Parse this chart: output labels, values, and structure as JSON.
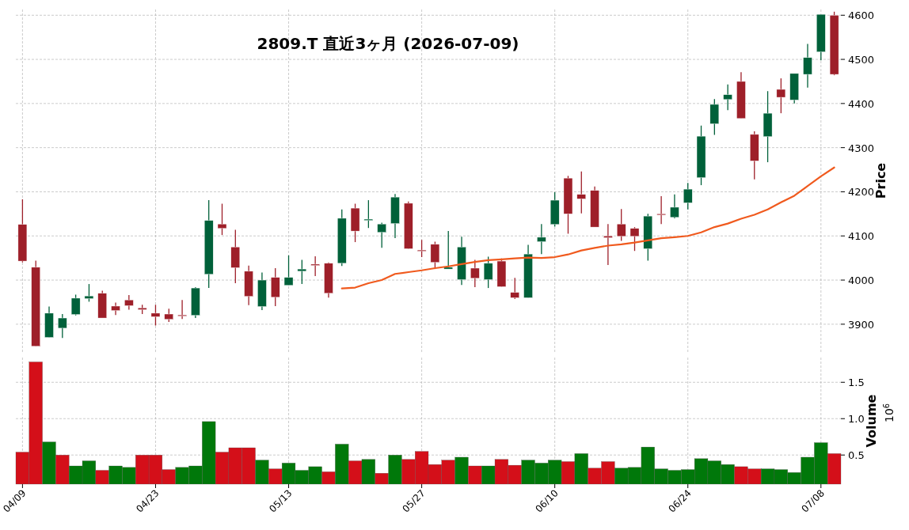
{
  "chart_data": [
    {
      "type": "candlestick",
      "title": "2809.T 直近3ヶ月 (2026-07-09)",
      "ylabel": "Price",
      "ohlc": [
        [
          4126,
          4183,
          4040,
          4043
        ],
        [
          4029,
          4044,
          3850,
          3850
        ],
        [
          3870,
          3940,
          3870,
          3925
        ],
        [
          3891,
          3923,
          3869,
          3914
        ],
        [
          3922,
          3967,
          3920,
          3959
        ],
        [
          3958,
          3991,
          3951,
          3964
        ],
        [
          3970,
          3976,
          3914,
          3914
        ],
        [
          3941,
          3949,
          3921,
          3931
        ],
        [
          3955,
          3966,
          3933,
          3942
        ],
        [
          3937,
          3944,
          3923,
          3933
        ],
        [
          3925,
          3944,
          3897,
          3917
        ],
        [
          3923,
          3935,
          3905,
          3911
        ],
        [
          3921,
          3955,
          3912,
          3920
        ],
        [
          3920,
          3984,
          3914,
          3982
        ],
        [
          4013,
          4181,
          3982,
          4135
        ],
        [
          4127,
          4173,
          4102,
          4117
        ],
        [
          4075,
          4114,
          3993,
          4028
        ],
        [
          4020,
          4033,
          3943,
          3963
        ],
        [
          3940,
          4017,
          3932,
          4000
        ],
        [
          4006,
          4027,
          3941,
          3961
        ],
        [
          3988,
          4056,
          3988,
          4006
        ],
        [
          4020,
          4046,
          3991,
          4025
        ],
        [
          4036,
          4054,
          4009,
          4033
        ],
        [
          4038,
          4040,
          3960,
          3970
        ],
        [
          4038,
          4160,
          4032,
          4140
        ],
        [
          4163,
          4173,
          4086,
          4111
        ],
        [
          4135,
          4181,
          4118,
          4138
        ],
        [
          4108,
          4130,
          4073,
          4127
        ],
        [
          4128,
          4195,
          4095,
          4188
        ],
        [
          4174,
          4178,
          4071,
          4071
        ],
        [
          4068,
          4091,
          4052,
          4067
        ],
        [
          4081,
          4087,
          4025,
          4040
        ],
        [
          4025,
          4111,
          4025,
          4029
        ],
        [
          4001,
          4098,
          3989,
          4075
        ],
        [
          4027,
          4046,
          3984,
          4004
        ],
        [
          4001,
          4053,
          3982,
          4038
        ],
        [
          4043,
          4049,
          3985,
          3985
        ],
        [
          3972,
          4005,
          3957,
          3960
        ],
        [
          3960,
          4080,
          3960,
          4059
        ],
        [
          4087,
          4127,
          4059,
          4097
        ],
        [
          4126,
          4199,
          4121,
          4181
        ],
        [
          4231,
          4236,
          4105,
          4150
        ],
        [
          4194,
          4246,
          4151,
          4184
        ],
        [
          4203,
          4212,
          4120,
          4120
        ],
        [
          4100,
          4127,
          4034,
          4096
        ],
        [
          4127,
          4161,
          4089,
          4099
        ],
        [
          4117,
          4120,
          4066,
          4099
        ],
        [
          4071,
          4150,
          4044,
          4145
        ],
        [
          4150,
          4190,
          4127,
          4148
        ],
        [
          4142,
          4194,
          4140,
          4165
        ],
        [
          4175,
          4220,
          4160,
          4206
        ],
        [
          4232,
          4350,
          4215,
          4326
        ],
        [
          4354,
          4410,
          4329,
          4398
        ],
        [
          4409,
          4443,
          4385,
          4420
        ],
        [
          4450,
          4471,
          4366,
          4366
        ],
        [
          4330,
          4337,
          4228,
          4270
        ],
        [
          4325,
          4428,
          4267,
          4378
        ],
        [
          4432,
          4457,
          4378,
          4414
        ],
        [
          4408,
          4468,
          4400,
          4468
        ],
        [
          4466,
          4535,
          4436,
          4504
        ],
        [
          4517,
          4602,
          4498,
          4602
        ],
        [
          4600,
          4608,
          4464,
          4466
        ]
      ],
      "colors": [
        "#9e1f29",
        "#9e1f29",
        "#00613a",
        "#00613a",
        "#00613a",
        "#00613a",
        "#9e1f29",
        "#9e1f29",
        "#9e1f29",
        "#9e1f29",
        "#9e1f29",
        "#9e1f29",
        "#9e1f29",
        "#00613a",
        "#00613a",
        "#9e1f29",
        "#9e1f29",
        "#9e1f29",
        "#00613a",
        "#9e1f29",
        "#00613a",
        "#00613a",
        "#9e1f29",
        "#9e1f29",
        "#00613a",
        "#9e1f29",
        "#00613a",
        "#00613a",
        "#00613a",
        "#9e1f29",
        "#9e1f29",
        "#9e1f29",
        "#00613a",
        "#00613a",
        "#9e1f29",
        "#00613a",
        "#9e1f29",
        "#9e1f29",
        "#00613a",
        "#00613a",
        "#00613a",
        "#9e1f29",
        "#9e1f29",
        "#9e1f29",
        "#9e1f29",
        "#9e1f29",
        "#9e1f29",
        "#00613a",
        "#9e1f29",
        "#00613a",
        "#00613a",
        "#00613a",
        "#00613a",
        "#00613a",
        "#9e1f29",
        "#9e1f29",
        "#00613a",
        "#9e1f29",
        "#00613a",
        "#00613a",
        "#00613a",
        "#9e1f29"
      ],
      "series": [
        {
          "type": "line",
          "color": "#f05a1e",
          "values": [
            null,
            null,
            null,
            null,
            null,
            null,
            null,
            null,
            null,
            null,
            null,
            null,
            null,
            null,
            null,
            null,
            null,
            null,
            null,
            null,
            null,
            null,
            null,
            null,
            3981,
            3983,
            3993,
            4000,
            4014,
            4018,
            4022,
            4027,
            4031,
            4036,
            4041,
            4045,
            4047,
            4049,
            4051,
            4050,
            4052,
            4058,
            4067,
            4073,
            4078,
            4081,
            4085,
            4090,
            4095,
            4097,
            4100,
            4108,
            4120,
            4128,
            4139,
            4148,
            4160,
            4176,
            4191,
            4213,
            4235,
            4255
          ]
        }
      ],
      "ylim": [
        3837,
        4613
      ],
      "yticks": [
        3900,
        4000,
        4100,
        4200,
        4300,
        4400,
        4500,
        4600
      ],
      "grid": true,
      "tick_labels": "y"
    },
    {
      "type": "bar",
      "ylabel": "Volume",
      "annotations": [
        "10$^{6}$"
      ],
      "categories": [
        "04/09",
        null,
        null,
        null,
        null,
        null,
        null,
        null,
        null,
        null,
        "04/23",
        null,
        null,
        null,
        null,
        null,
        null,
        null,
        null,
        null,
        "05/13",
        null,
        null,
        null,
        null,
        null,
        null,
        null,
        null,
        null,
        "05/27",
        null,
        null,
        null,
        null,
        null,
        null,
        null,
        null,
        null,
        "06/10",
        null,
        null,
        null,
        null,
        null,
        null,
        null,
        null,
        null,
        "06/24",
        null,
        null,
        null,
        null,
        null,
        null,
        null,
        null,
        null,
        "07/08",
        null
      ],
      "values": [
        0.54,
        1.78,
        0.68,
        0.5,
        0.35,
        0.42,
        0.29,
        0.35,
        0.33,
        0.5,
        0.5,
        0.3,
        0.33,
        0.35,
        0.96,
        0.54,
        0.6,
        0.6,
        0.43,
        0.31,
        0.39,
        0.29,
        0.34,
        0.27,
        0.65,
        0.42,
        0.44,
        0.25,
        0.5,
        0.44,
        0.55,
        0.37,
        0.43,
        0.47,
        0.35,
        0.35,
        0.44,
        0.36,
        0.43,
        0.39,
        0.43,
        0.41,
        0.52,
        0.32,
        0.41,
        0.32,
        0.33,
        0.61,
        0.31,
        0.29,
        0.3,
        0.45,
        0.42,
        0.37,
        0.34,
        0.31,
        0.31,
        0.3,
        0.26,
        0.47,
        0.67,
        0.52
      ],
      "colors": [
        "#d40f19",
        "#d40f19",
        "#00780a",
        "#d40f19",
        "#00780a",
        "#00780a",
        "#d40f19",
        "#00780a",
        "#00780a",
        "#d40f19",
        "#d40f19",
        "#d40f19",
        "#00780a",
        "#00780a",
        "#00780a",
        "#d40f19",
        "#d40f19",
        "#d40f19",
        "#00780a",
        "#d40f19",
        "#00780a",
        "#00780a",
        "#00780a",
        "#d40f19",
        "#00780a",
        "#d40f19",
        "#00780a",
        "#d40f19",
        "#00780a",
        "#d40f19",
        "#d40f19",
        "#d40f19",
        "#d40f19",
        "#00780a",
        "#d40f19",
        "#00780a",
        "#d40f19",
        "#d40f19",
        "#00780a",
        "#00780a",
        "#00780a",
        "#d40f19",
        "#00780a",
        "#d40f19",
        "#d40f19",
        "#00780a",
        "#00780a",
        "#00780a",
        "#00780a",
        "#00780a",
        "#00780a",
        "#00780a",
        "#00780a",
        "#00780a",
        "#d40f19",
        "#d40f19",
        "#00780a",
        "#00780a",
        "#00780a",
        "#00780a",
        "#00780a",
        "#d40f19"
      ],
      "ylim": [
        0.1,
        1.84
      ],
      "yticks": [
        0.5,
        {
          "value": 1,
          "label": "1.0"
        },
        1.5
      ],
      "grid": true
    }
  ]
}
